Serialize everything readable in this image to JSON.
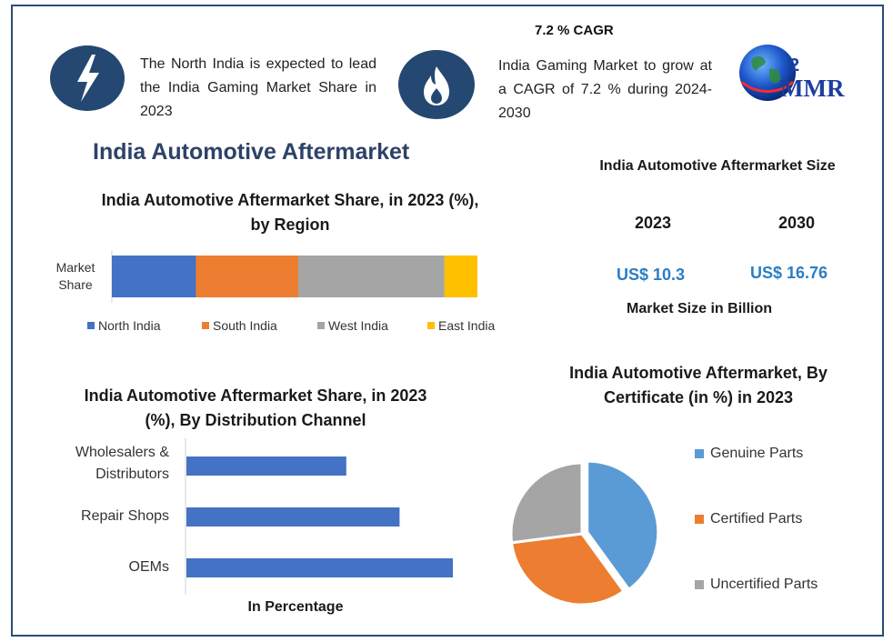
{
  "header": {
    "blurb_left": "The North India is expected to lead the India Gaming Market Share in 2023",
    "cagr_title": "7.2 % CAGR",
    "blurb_right": "India Gaming Market to grow at a CAGR of 7.2 % during 2024-2030",
    "logo_text": "MMR",
    "left_icon": "lightning-bolt-icon",
    "right_icon": "flame-icon",
    "logo_icon": "globe-icon"
  },
  "main_title": "India Automotive Aftermarket",
  "market_size": {
    "title": "India Automotive Aftermarket Size",
    "years": [
      "2023",
      "2030"
    ],
    "values": [
      "US$ 10.3",
      "US$ 16.76"
    ],
    "unit_label": "Market Size in Billion"
  },
  "colors": {
    "frame": "#2d4c7b",
    "icon_bg": "#254872",
    "blue": "#4472c4",
    "orange": "#ed7d31",
    "gray": "#a5a5a5",
    "yellow": "#ffc000",
    "pie_blue": "#5b9bd5",
    "usd": "#2a7ec4"
  },
  "chart_data": [
    {
      "type": "bar",
      "orientation": "horizontal-stacked",
      "title": "India Automotive Aftermarket Share, in 2023 (%), by Region",
      "categories": [
        "Market Share"
      ],
      "series": [
        {
          "name": "North India",
          "values": [
            23
          ],
          "color": "#4472c4"
        },
        {
          "name": "South India",
          "values": [
            28
          ],
          "color": "#ed7d31"
        },
        {
          "name": "West India",
          "values": [
            40
          ],
          "color": "#a5a5a5"
        },
        {
          "name": "East India",
          "values": [
            9
          ],
          "color": "#ffc000"
        }
      ],
      "legend_position": "bottom",
      "grid": false
    },
    {
      "type": "bar",
      "orientation": "horizontal",
      "title": "India Automotive Aftermarket Share, in 2023 (%), By Distribution Channel",
      "xlabel": "In Percentage",
      "categories": [
        "Wholesalers & Distributors",
        "Repair Shops",
        "OEMs"
      ],
      "values": [
        30,
        40,
        50
      ],
      "color": "#4472c4",
      "grid": false
    },
    {
      "type": "pie",
      "title": "India Automotive Aftermarket, By Certificate  (in %) in 2023",
      "categories": [
        "Genuine Parts",
        "Certified Parts",
        "Uncertified Parts"
      ],
      "values": [
        40,
        33,
        27
      ],
      "colors": [
        "#5b9bd5",
        "#ed7d31",
        "#a5a5a5"
      ],
      "legend_position": "right"
    }
  ]
}
